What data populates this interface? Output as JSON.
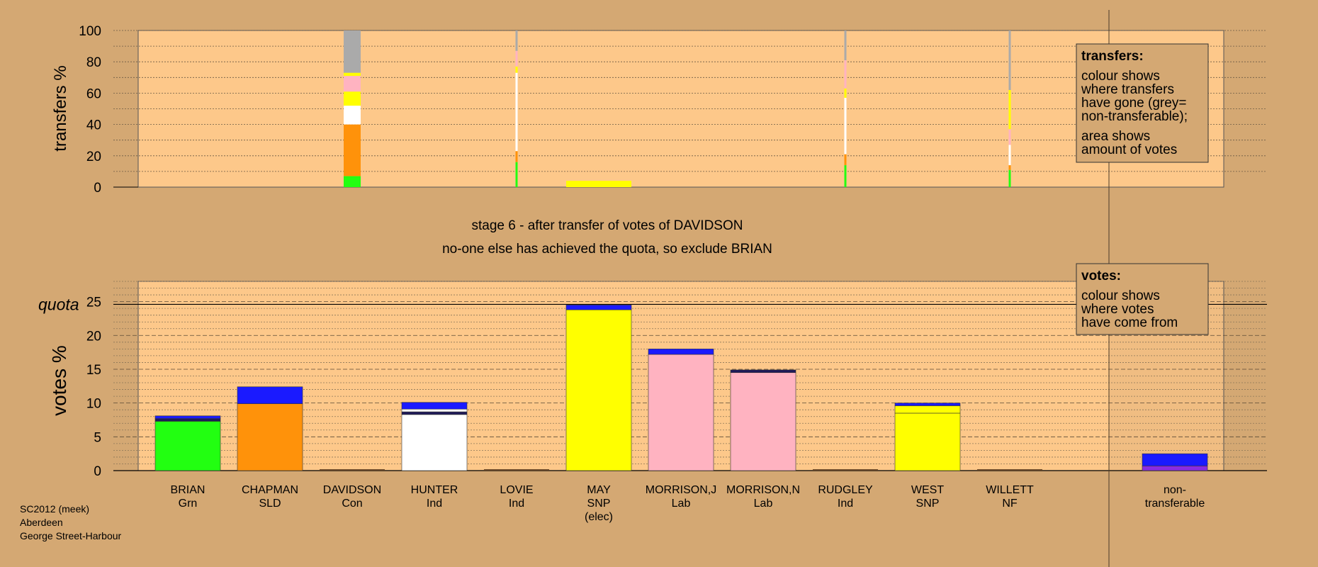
{
  "colors": {
    "background": "#d4a873",
    "plot_bg": "#fdc88a",
    "Grn": "#22ff11",
    "SLD": "#ff920a",
    "Ind": "#ffffff",
    "SNP": "#ffff00",
    "Lab": "#ffb3c1",
    "Con": "#1a1aff",
    "NF": "#8a2be2",
    "nontransferable": "#aaaaaa",
    "Con_dark": "#1f1a5a"
  },
  "stage_title": "stage 6 - after transfer of votes of DAVIDSON",
  "stage_subtitle": "no-one else has achieved the quota, so exclude BRIAN",
  "footer": [
    "SC2012 (meek)",
    "Aberdeen",
    "George Street-Harbour"
  ],
  "legend_transfers": {
    "heading": "transfers:",
    "lines": [
      "colour shows",
      "where transfers",
      "have gone (grey=",
      "non-transferable);"
    ],
    "lines2": [
      "area shows",
      "amount of votes"
    ]
  },
  "legend_votes": {
    "heading": "votes:",
    "lines": [
      "colour shows",
      "where votes",
      "have come from"
    ]
  },
  "chart_data": [
    {
      "type": "bar",
      "name": "transfers",
      "ylabel": "transfers %",
      "ylim": [
        0,
        100
      ],
      "yticks": [
        0,
        20,
        40,
        60,
        80,
        100
      ],
      "grid": true,
      "bars": [
        {
          "candidate": "DAVIDSON",
          "segments": [
            {
              "party": "Grn",
              "value": 7
            },
            {
              "party": "SLD",
              "value": 33
            },
            {
              "party": "Ind",
              "value": 12
            },
            {
              "party": "SNP",
              "value": 9
            },
            {
              "party": "Lab",
              "value": 10
            },
            {
              "party": "SNP",
              "value": 2
            },
            {
              "party": "nontransferable",
              "value": 27
            }
          ]
        },
        {
          "candidate": "LOVIE",
          "segments": [
            {
              "party": "Grn",
              "value": 16
            },
            {
              "party": "SLD",
              "value": 7
            },
            {
              "party": "Ind",
              "value": 50
            },
            {
              "party": "SNP",
              "value": 4
            },
            {
              "party": "Lab",
              "value": 10
            },
            {
              "party": "nontransferable",
              "value": 13
            }
          ]
        },
        {
          "candidate": "MAY",
          "segments": [
            {
              "party": "SNP",
              "value": 4
            }
          ]
        },
        {
          "candidate": "RUDGLEY",
          "segments": [
            {
              "party": "Grn",
              "value": 14
            },
            {
              "party": "SLD",
              "value": 7
            },
            {
              "party": "Ind",
              "value": 36
            },
            {
              "party": "SNP",
              "value": 6
            },
            {
              "party": "Lab",
              "value": 18
            },
            {
              "party": "nontransferable",
              "value": 19
            }
          ]
        },
        {
          "candidate": "WILLETT",
          "segments": [
            {
              "party": "Grn",
              "value": 11
            },
            {
              "party": "SLD",
              "value": 3
            },
            {
              "party": "Ind",
              "value": 13
            },
            {
              "party": "Lab",
              "value": 10
            },
            {
              "party": "SNP",
              "value": 25
            },
            {
              "party": "nontransferable",
              "value": 38
            }
          ]
        }
      ]
    },
    {
      "type": "bar",
      "name": "votes",
      "ylabel": "votes %",
      "ylim": [
        0,
        28
      ],
      "yticks": [
        0,
        5,
        10,
        15,
        20,
        25
      ],
      "quota": 24.6,
      "quota_label": "quota",
      "grid": true,
      "candidates": [
        {
          "name": "BRIAN",
          "party": "Grn",
          "segments": [
            {
              "party": "Grn",
              "value": 7.3
            },
            {
              "party": "Con_dark",
              "value": 0.4
            },
            {
              "party": "Con",
              "value": 0.4
            }
          ]
        },
        {
          "name": "CHAPMAN",
          "party": "SLD",
          "segments": [
            {
              "party": "SLD",
              "value": 9.9
            },
            {
              "party": "Con",
              "value": 2.5
            }
          ]
        },
        {
          "name": "DAVIDSON",
          "party": "Con",
          "segments": []
        },
        {
          "name": "HUNTER",
          "party": "Ind",
          "segments": [
            {
              "party": "Ind",
              "value": 8.3
            },
            {
              "party": "Con_dark",
              "value": 0.4
            },
            {
              "party": "Ind",
              "value": 0.4
            },
            {
              "party": "Con",
              "value": 1.0
            }
          ]
        },
        {
          "name": "LOVIE",
          "party": "Ind",
          "segments": []
        },
        {
          "name": "MAY",
          "party": "SNP",
          "elected": true,
          "elected_label": "(elec)",
          "segments": [
            {
              "party": "SNP",
              "value": 23.8
            },
            {
              "party": "Con",
              "value": 0.7
            }
          ]
        },
        {
          "name": "MORRISON,J",
          "party": "Lab",
          "segments": [
            {
              "party": "Lab",
              "value": 17.2
            },
            {
              "party": "Con",
              "value": 0.8
            }
          ]
        },
        {
          "name": "MORRISON,N",
          "party": "Lab",
          "segments": [
            {
              "party": "Lab",
              "value": 14.5
            },
            {
              "party": "Con_dark",
              "value": 0.4
            }
          ]
        },
        {
          "name": "RUDGLEY",
          "party": "Ind",
          "segments": []
        },
        {
          "name": "WEST",
          "party": "SNP",
          "segments": [
            {
              "party": "SNP",
              "value": 8.5
            },
            {
              "party": "SNP",
              "value": 1.1
            },
            {
              "party": "Con",
              "value": 0.4
            }
          ]
        },
        {
          "name": "WILLETT",
          "party": "NF",
          "segments": []
        },
        {
          "name": "non-transferable",
          "label_lines": [
            "non-",
            "transferable"
          ],
          "party": "",
          "segments": [
            {
              "party": "NF",
              "value": 0.7
            },
            {
              "party": "Con",
              "value": 1.8
            }
          ]
        }
      ]
    }
  ]
}
